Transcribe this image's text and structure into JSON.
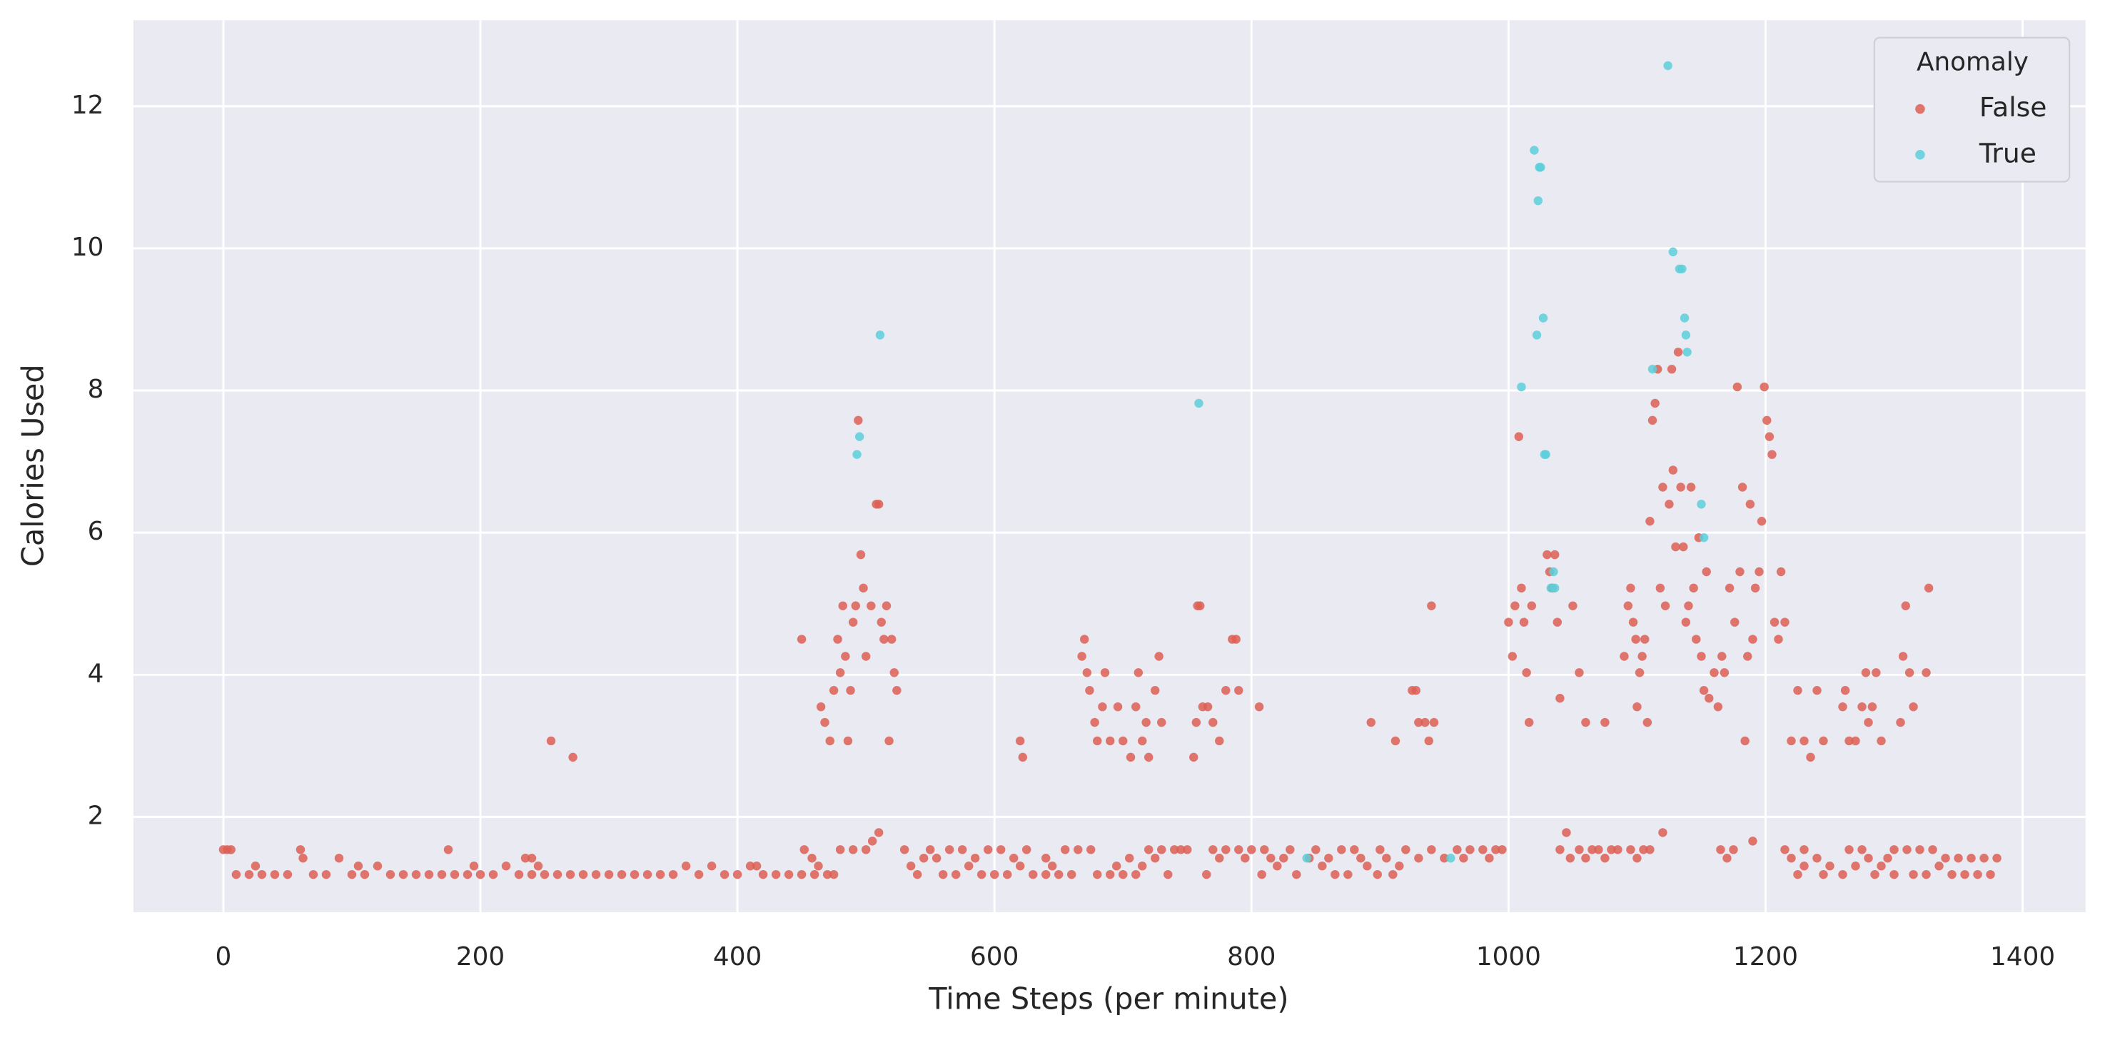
{
  "chart_data": {
    "type": "scatter",
    "xlabel": "Time Steps (per minute)",
    "ylabel": "Calories Used",
    "xlim": [
      -70,
      1449
    ],
    "ylim": [
      0.66,
      13.21
    ],
    "xticks": [
      0,
      200,
      400,
      600,
      800,
      1000,
      1200,
      1400
    ],
    "yticks": [
      2,
      4,
      6,
      8,
      10,
      12
    ],
    "grid": true,
    "legend": "upper right",
    "legend_title": "Anomaly",
    "series": [
      {
        "name": "False",
        "color": "#dd5f55",
        "x": [
          10,
          20,
          30,
          40,
          50,
          70,
          80,
          100,
          110,
          130,
          140,
          150,
          160,
          170,
          180,
          190,
          200,
          210,
          230,
          240,
          250,
          260,
          270,
          280,
          290,
          300,
          310,
          320,
          330,
          340,
          350,
          370,
          390,
          400,
          420,
          430,
          440,
          450,
          460,
          470,
          0,
          3,
          6,
          60,
          175,
          62,
          90,
          235,
          240,
          25,
          105,
          120,
          195,
          220,
          245,
          360,
          380,
          410,
          415,
          255,
          272,
          450,
          452,
          458,
          463,
          465,
          468,
          472,
          475,
          478,
          480,
          482,
          484,
          486,
          488,
          490,
          492,
          494,
          496,
          498,
          500,
          504,
          508,
          510,
          512,
          514,
          516,
          518,
          520,
          522,
          524,
          505,
          510,
          500,
          480,
          490,
          475,
          540,
          560,
          570,
          590,
          600,
          610,
          630,
          640,
          650,
          660,
          535,
          580,
          620,
          645,
          545,
          555,
          585,
          615,
          640,
          530,
          550,
          565,
          575,
          595,
          605,
          625,
          655,
          620,
          622,
          668,
          670,
          672,
          674,
          678,
          680,
          684,
          686,
          690,
          696,
          700,
          706,
          710,
          712,
          715,
          718,
          720,
          725,
          728,
          730,
          680,
          690,
          700,
          710,
          735,
          695,
          715,
          705,
          725,
          665,
          675,
          720,
          730,
          740,
          745,
          750,
          755,
          757,
          758,
          760,
          762,
          766,
          770,
          775,
          780,
          785,
          788,
          790,
          806,
          770,
          780,
          790,
          800,
          810,
          830,
          850,
          870,
          880,
          900,
          920,
          940,
          960,
          970,
          980,
          990,
          995,
          775,
          795,
          815,
          825,
          845,
          860,
          885,
          905,
          930,
          950,
          965,
          985,
          820,
          855,
          890,
          915,
          765,
          808,
          835,
          865,
          875,
          898,
          910,
          893,
          912,
          925,
          928,
          930,
          935,
          938,
          940,
          942,
          1000,
          1003,
          1005,
          1008,
          1010,
          1012,
          1014,
          1016,
          1018,
          1030,
          1032,
          1034,
          1036,
          1038,
          1040,
          1045,
          1050,
          1055,
          1060,
          1075,
          1090,
          1093,
          1095,
          1097,
          1099,
          1100,
          1102,
          1104,
          1106,
          1108,
          1110,
          1112,
          1114,
          1116,
          1118,
          1120,
          1122,
          1125,
          1127,
          1128,
          1130,
          1132,
          1134,
          1136,
          1138,
          1140,
          1142,
          1144,
          1146,
          1148,
          1150,
          1152,
          1154,
          1156,
          1160,
          1163,
          1166,
          1168,
          1172,
          1176,
          1178,
          1180,
          1182,
          1184,
          1186,
          1188,
          1190,
          1192,
          1195,
          1197,
          1199,
          1201,
          1203,
          1205,
          1207,
          1210,
          1212,
          1215,
          1220,
          1225,
          1230,
          1235,
          1240,
          1245,
          1260,
          1262,
          1265,
          1270,
          1275,
          1278,
          1280,
          1283,
          1286,
          1290,
          1305,
          1307,
          1309,
          1312,
          1315,
          1325,
          1327,
          1120,
          1190,
          1040,
          1055,
          1065,
          1070,
          1080,
          1085,
          1095,
          1105,
          1110,
          1165,
          1175,
          1215,
          1230,
          1265,
          1275,
          1300,
          1310,
          1320,
          1330,
          1048,
          1060,
          1075,
          1100,
          1170,
          1220,
          1240,
          1280,
          1295,
          1340,
          1350,
          1360,
          1370,
          1380,
          1230,
          1250,
          1270,
          1290,
          1335,
          1225,
          1245,
          1260,
          1285,
          1300,
          1315,
          1325,
          1345,
          1355,
          1365,
          1375
        ],
        "values": [
          1.19,
          1.19,
          1.19,
          1.19,
          1.19,
          1.19,
          1.19,
          1.19,
          1.19,
          1.19,
          1.19,
          1.19,
          1.19,
          1.19,
          1.19,
          1.19,
          1.19,
          1.19,
          1.19,
          1.19,
          1.19,
          1.19,
          1.19,
          1.19,
          1.19,
          1.19,
          1.19,
          1.19,
          1.19,
          1.19,
          1.19,
          1.19,
          1.19,
          1.19,
          1.19,
          1.19,
          1.19,
          1.19,
          1.19,
          1.19,
          1.54,
          1.54,
          1.54,
          1.54,
          1.54,
          1.42,
          1.42,
          1.42,
          1.42,
          1.31,
          1.31,
          1.31,
          1.31,
          1.31,
          1.31,
          1.31,
          1.31,
          1.31,
          1.31,
          3.07,
          2.84,
          4.5,
          1.54,
          1.42,
          1.31,
          3.55,
          3.33,
          3.07,
          3.78,
          4.5,
          4.03,
          4.97,
          4.26,
          3.07,
          3.78,
          4.74,
          4.97,
          7.58,
          5.69,
          5.22,
          4.26,
          4.97,
          6.4,
          6.4,
          4.74,
          4.5,
          4.97,
          3.07,
          4.5,
          4.03,
          3.78,
          1.66,
          1.78,
          1.54,
          1.54,
          1.54,
          1.19,
          1.19,
          1.19,
          1.19,
          1.19,
          1.19,
          1.19,
          1.19,
          1.19,
          1.19,
          1.19,
          1.31,
          1.31,
          1.31,
          1.31,
          1.42,
          1.42,
          1.42,
          1.42,
          1.42,
          1.54,
          1.54,
          1.54,
          1.54,
          1.54,
          1.54,
          1.54,
          1.54,
          3.07,
          2.84,
          4.26,
          4.5,
          4.03,
          3.78,
          3.33,
          3.07,
          3.55,
          4.03,
          3.07,
          3.55,
          3.07,
          2.84,
          3.55,
          4.03,
          3.07,
          3.33,
          2.84,
          3.78,
          4.26,
          3.33,
          1.19,
          1.19,
          1.19,
          1.19,
          1.19,
          1.31,
          1.31,
          1.42,
          1.42,
          1.54,
          1.54,
          1.54,
          1.54,
          1.54,
          1.54,
          1.54,
          2.84,
          3.33,
          4.97,
          4.97,
          3.55,
          3.55,
          3.33,
          3.07,
          3.78,
          4.5,
          4.5,
          3.78,
          3.55,
          1.54,
          1.54,
          1.54,
          1.54,
          1.54,
          1.54,
          1.54,
          1.54,
          1.54,
          1.54,
          1.54,
          1.54,
          1.54,
          1.54,
          1.54,
          1.54,
          1.54,
          1.42,
          1.42,
          1.42,
          1.42,
          1.42,
          1.42,
          1.42,
          1.42,
          1.42,
          1.42,
          1.42,
          1.42,
          1.31,
          1.31,
          1.31,
          1.31,
          1.19,
          1.19,
          1.19,
          1.19,
          1.19,
          1.19,
          1.19,
          3.33,
          3.07,
          3.78,
          3.78,
          3.33,
          3.33,
          3.07,
          4.97,
          3.33,
          4.74,
          4.26,
          4.97,
          7.35,
          5.22,
          4.74,
          4.03,
          3.33,
          4.97,
          5.69,
          5.45,
          5.22,
          5.69,
          4.74,
          3.67,
          1.78,
          4.97,
          4.03,
          3.33,
          3.33,
          4.26,
          4.97,
          5.22,
          4.74,
          4.5,
          3.55,
          4.03,
          4.26,
          4.5,
          3.33,
          6.16,
          7.58,
          7.82,
          8.3,
          5.22,
          6.64,
          4.97,
          6.4,
          8.3,
          6.88,
          5.8,
          8.54,
          6.64,
          5.8,
          4.74,
          4.97,
          6.64,
          5.22,
          4.5,
          5.93,
          4.26,
          3.78,
          5.45,
          3.67,
          4.03,
          3.55,
          4.26,
          4.03,
          5.22,
          4.74,
          8.05,
          5.45,
          6.64,
          3.07,
          4.26,
          6.4,
          4.5,
          5.22,
          5.45,
          6.16,
          8.05,
          7.58,
          7.35,
          7.1,
          4.74,
          4.5,
          5.45,
          4.74,
          3.07,
          3.78,
          3.07,
          2.84,
          3.78,
          3.07,
          3.55,
          3.78,
          3.07,
          3.07,
          3.55,
          4.03,
          3.33,
          3.55,
          4.03,
          3.07,
          3.33,
          4.26,
          4.97,
          4.03,
          3.55,
          4.03,
          5.22,
          1.78,
          1.66,
          1.54,
          1.54,
          1.54,
          1.54,
          1.54,
          1.54,
          1.54,
          1.54,
          1.54,
          1.54,
          1.54,
          1.54,
          1.54,
          1.54,
          1.54,
          1.54,
          1.54,
          1.54,
          1.54,
          1.42,
          1.42,
          1.42,
          1.42,
          1.42,
          1.42,
          1.42,
          1.42,
          1.42,
          1.42,
          1.42,
          1.42,
          1.42,
          1.42,
          1.31,
          1.31,
          1.31,
          1.31,
          1.31,
          1.19,
          1.19,
          1.19,
          1.19,
          1.19,
          1.19,
          1.19,
          1.19,
          1.19,
          1.19,
          1.19
        ]
      },
      {
        "name": "True",
        "color": "#5ccfdb",
        "x": [
          493,
          495,
          511,
          759,
          843,
          955,
          1010,
          1020,
          1022,
          1023,
          1024,
          1025,
          1027,
          1028,
          1029,
          1033,
          1035,
          1036,
          1112,
          1124,
          1128,
          1133,
          1135,
          1137,
          1138,
          1139,
          1150,
          1152
        ],
        "values": [
          7.1,
          7.35,
          8.78,
          7.82,
          1.42,
          1.42,
          8.05,
          11.38,
          8.78,
          10.67,
          11.14,
          11.14,
          9.02,
          7.1,
          7.1,
          5.22,
          5.45,
          5.22,
          8.3,
          12.57,
          9.95,
          9.71,
          9.71,
          9.02,
          8.78,
          8.54,
          6.4,
          5.93
        ]
      }
    ]
  }
}
